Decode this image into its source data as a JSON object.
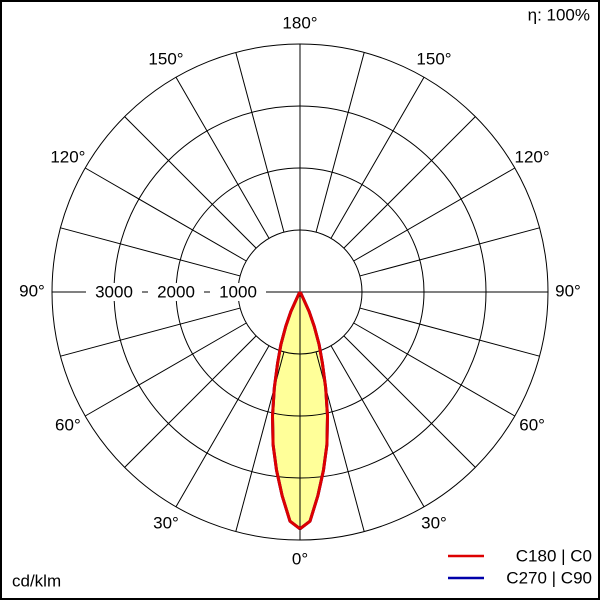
{
  "chart_data": {
    "type": "polar",
    "corner_label": "η: 100%",
    "unit_label": "cd/klm",
    "rlim": [
      0,
      4000
    ],
    "rticks": [
      1000,
      2000,
      3000
    ],
    "angle_step": 15,
    "angle_ticks": [
      {
        "value": 0,
        "label": "0°"
      },
      {
        "value": 30,
        "label": "30°"
      },
      {
        "value": 60,
        "label": "60°"
      },
      {
        "value": 90,
        "label": "90°"
      },
      {
        "value": 120,
        "label": "120°"
      },
      {
        "value": 150,
        "label": "150°"
      },
      {
        "value": 180,
        "label": "180°"
      }
    ],
    "angles": [
      0,
      2.5,
      5,
      7.5,
      10,
      12.5,
      15,
      17.5,
      20,
      22.5,
      25,
      30,
      35
    ],
    "fill": "#ffff99",
    "series": [
      {
        "name": "C270 | C90",
        "color": "#0000aa",
        "values": [
          3820,
          3700,
          3300,
          2900,
          2500,
          2050,
          1600,
          1200,
          900,
          600,
          350,
          50,
          0
        ]
      },
      {
        "name": "C180 | C0",
        "color": "#dd0000",
        "values": [
          3820,
          3700,
          3300,
          2900,
          2500,
          2050,
          1600,
          1200,
          900,
          600,
          350,
          50,
          0
        ]
      }
    ]
  }
}
